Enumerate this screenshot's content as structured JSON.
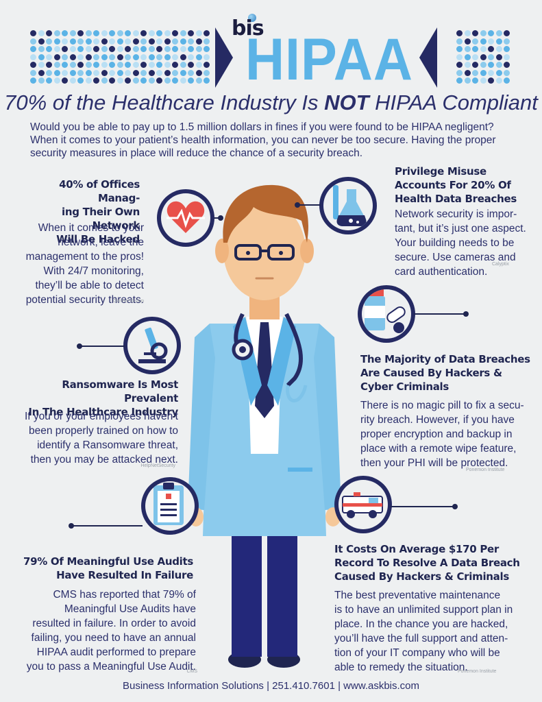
{
  "header": {
    "logo": "bis",
    "title": "HIPAA",
    "headline_pre": "70% of the Healthcare Industry Is ",
    "headline_emph": "NOT",
    "headline_post": " HIPAA Compliant",
    "intro": "Would you be able to pay up to 1.5 million dollars in fines if you were found to be HIPAA negligent? When it comes to your patient’s health information, you can never be too secure. Having the proper security measures in place will reduce the chance of a security breach."
  },
  "sections": {
    "network": {
      "title_lines": [
        "40% of Offices Manag-",
        "ing Their Own Network",
        "Will Be Hacked"
      ],
      "body_lines": [
        "When it comes to your",
        "network, leave the",
        "management to the pros!",
        "With 24/7 monitoring,",
        "they’ll be able to detect",
        "potential security threats."
      ],
      "source": "Gartner Group"
    },
    "privilege": {
      "title_lines": [
        "Privilege Misuse",
        "Accounts For 20% Of",
        "Health Data Breaches"
      ],
      "body_lines": [
        "Network security is impor-",
        "tant, but it’s just one aspect.",
        "Your building needs to be",
        "secure. Use cameras and",
        "card authentication."
      ],
      "source": "Calyptix"
    },
    "ransomware": {
      "title_lines": [
        "Ransomware Is Most Prevalent",
        "In The Healthcare Industry"
      ],
      "body_lines": [
        "If you or your employees haven’t",
        "been properly trained on how to",
        "identify a Ransomware threat,",
        "then you may be attacked next."
      ],
      "source": "HelpNetSecurity"
    },
    "hackers": {
      "title_lines": [
        "The Majority of Data Breaches",
        "Are Caused By Hackers &",
        "Cyber Criminals"
      ],
      "body_lines": [
        "There is no magic pill to fix a secu-",
        "rity breach. However, if you have",
        "proper encryption and backup in",
        "place with a remote wipe feature,",
        "then your PHI will be protected."
      ],
      "source": "Ponemon Institute"
    },
    "audits": {
      "title_lines": [
        "79% Of Meaningful Use Audits",
        "Have Resulted In Failure"
      ],
      "body_lines": [
        "CMS has reported that 79% of",
        "Meaningful Use Audits have",
        "resulted in failure. In order to avoid",
        "failing, you need to have an annual",
        "HIPAA audit performed to prepare",
        "you to pass a Meaningful Use Audit."
      ],
      "source": "CMS"
    },
    "cost": {
      "title_lines": [
        "It Costs On Average $170 Per",
        "Record To Resolve A Data Breach",
        "Caused By Hackers & Criminals"
      ],
      "body_lines": [
        "The best preventative maintenance",
        "is to have an unlimited support plan in",
        "place. In the chance you are hacked,",
        "you’ll have the full support and atten-",
        "tion of your IT company who will be",
        "able to remedy the situation."
      ],
      "source": "Ponemon Institute"
    }
  },
  "icons": {
    "heart": "heart-monitor-icon",
    "flask": "lab-flask-icon",
    "microscope": "microscope-icon",
    "pills": "pill-bottle-icon",
    "clipboard": "clipboard-icon",
    "ambulance": "ambulance-icon"
  },
  "colors": {
    "navy": "#252a63",
    "light_blue": "#5bb3e6",
    "background": "#eef0f1"
  },
  "footer": "Business Information Solutions | 251.410.7601 | www.askbis.com"
}
